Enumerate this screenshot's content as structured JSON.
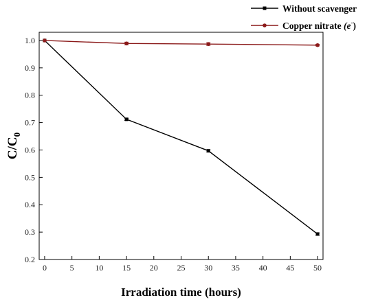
{
  "chart_data": {
    "type": "line",
    "xlabel": "Irradiation time (hours)",
    "ylabel": {
      "main": "C/C",
      "sub": "0"
    },
    "xlim": [
      -1,
      51
    ],
    "ylim": [
      0.2,
      1.03
    ],
    "xticks": [
      0,
      5,
      10,
      15,
      20,
      25,
      30,
      35,
      40,
      45,
      50
    ],
    "yticks": [
      0.2,
      0.3,
      0.4,
      0.5,
      0.6,
      0.7,
      0.8,
      0.9,
      1.0
    ],
    "ytick_labels": [
      "0.2",
      "0.3",
      "0.4",
      "0.5",
      "0.6",
      "0.7",
      "0.8",
      "0.9",
      "1.0"
    ],
    "legend_placement": "top-right, outside plot",
    "grid": false,
    "series": [
      {
        "name": "Without scavenger",
        "color": "#000000",
        "marker": "square",
        "x": [
          0,
          15,
          30,
          50
        ],
        "y": [
          1.0,
          0.712,
          0.597,
          0.293
        ],
        "err": [
          0,
          0.004,
          0.004,
          0.004
        ]
      },
      {
        "name": "Copper nitrate",
        "name_suffix": "(e",
        "name_sup": "-",
        "name_close": ")",
        "color": "#8b1a1a",
        "marker": "circle",
        "x": [
          0,
          15,
          30,
          50
        ],
        "y": [
          1.0,
          0.989,
          0.987,
          0.983
        ],
        "err": [
          0,
          0.005,
          0.005,
          0.003
        ]
      }
    ]
  }
}
